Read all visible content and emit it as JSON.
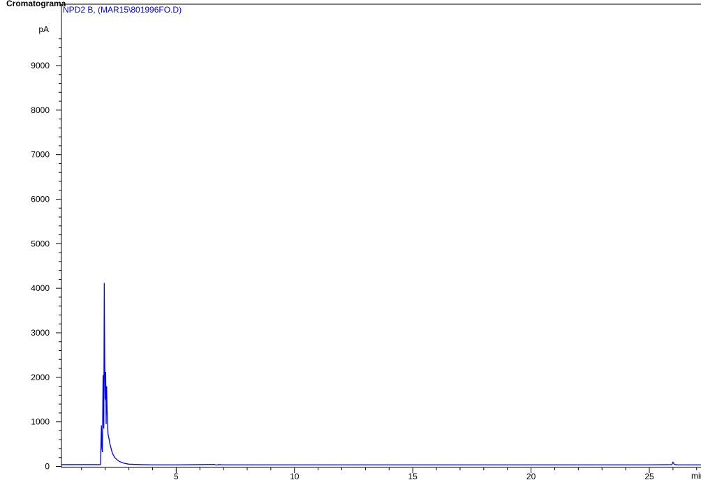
{
  "header": {
    "title": "Cromatograma",
    "signal_label": "NPD2 B,  (MAR15\\801996FO.D)"
  },
  "colors": {
    "trace": "#0000ff",
    "axis": "#000000",
    "background": "#ffffff"
  },
  "chart_data": {
    "type": "line",
    "title": "Cromatograma",
    "xlabel": "min",
    "ylabel": "pA",
    "xlim": [
      0.15,
      27.2
    ],
    "ylim": [
      0,
      9650
    ],
    "xticks": [
      5,
      10,
      15,
      20,
      25
    ],
    "yticks": [
      0,
      1000,
      2000,
      3000,
      4000,
      5000,
      6000,
      7000,
      8000,
      9000
    ],
    "grid": false,
    "series": [
      {
        "name": "NPD2 B,  (MAR15\\801996FO.D)",
        "x": [
          0.15,
          1.0,
          1.8,
          1.84,
          1.86,
          1.88,
          1.91,
          1.94,
          1.96,
          1.98,
          2.0,
          2.02,
          2.04,
          2.06,
          2.08,
          2.1,
          2.12,
          2.15,
          2.2,
          2.25,
          2.3,
          2.4,
          2.5,
          2.6,
          2.8,
          3.0,
          3.5,
          4.0,
          5.0,
          6.0,
          6.6,
          6.7,
          6.8,
          7.0,
          10.0,
          15.0,
          20.0,
          25.0,
          25.95,
          26.0,
          26.05,
          26.1,
          26.2,
          27.2
        ],
        "y": [
          40,
          40,
          40,
          920,
          400,
          320,
          2050,
          850,
          4120,
          2300,
          1500,
          2120,
          950,
          1800,
          1300,
          900,
          720,
          650,
          500,
          400,
          300,
          200,
          150,
          110,
          70,
          50,
          40,
          35,
          35,
          40,
          45,
          30,
          40,
          35,
          35,
          35,
          35,
          35,
          40,
          95,
          50,
          40,
          35,
          35
        ]
      }
    ]
  }
}
